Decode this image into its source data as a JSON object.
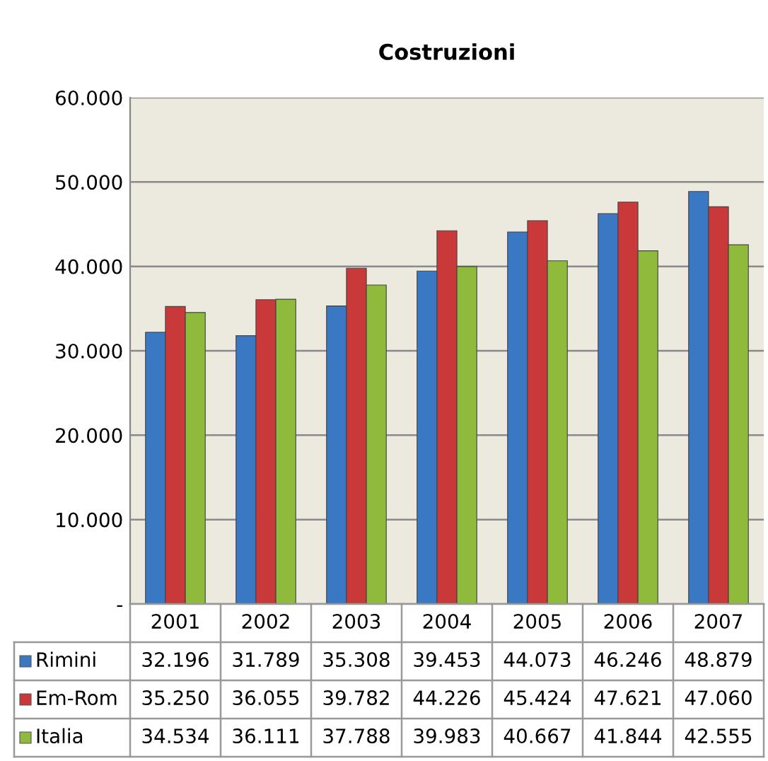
{
  "chart_data": {
    "type": "bar",
    "title": "Costruzioni",
    "categories": [
      "2001",
      "2002",
      "2003",
      "2004",
      "2005",
      "2006",
      "2007"
    ],
    "series": [
      {
        "name": "Rimini",
        "color": "#3a78c3",
        "values": [
          32196,
          31789,
          35308,
          39453,
          44073,
          46246,
          48879
        ],
        "value_labels": [
          "32.196",
          "31.789",
          "35.308",
          "39.453",
          "44.073",
          "46.246",
          "48.879"
        ]
      },
      {
        "name": "Em-Rom",
        "color": "#c9393a",
        "values": [
          35250,
          36055,
          39782,
          44226,
          45424,
          47621,
          47060
        ],
        "value_labels": [
          "35.250",
          "36.055",
          "39.782",
          "44.226",
          "45.424",
          "47.621",
          "47.060"
        ]
      },
      {
        "name": "Italia",
        "color": "#8fba3c",
        "values": [
          34534,
          36111,
          37788,
          39983,
          40667,
          41844,
          42555
        ],
        "value_labels": [
          "34.534",
          "36.111",
          "37.788",
          "39.983",
          "40.667",
          "41.844",
          "42.555"
        ]
      }
    ],
    "ylim": [
      0,
      60000
    ],
    "yticks": [
      {
        "value": 0,
        "label": "-"
      },
      {
        "value": 10000,
        "label": "10.000"
      },
      {
        "value": 20000,
        "label": "20.000"
      },
      {
        "value": 30000,
        "label": "30.000"
      },
      {
        "value": 40000,
        "label": "40.000"
      },
      {
        "value": 50000,
        "label": "50.000"
      },
      {
        "value": 60000,
        "label": "60.000"
      }
    ],
    "grid": "y",
    "legend": "bottom"
  }
}
